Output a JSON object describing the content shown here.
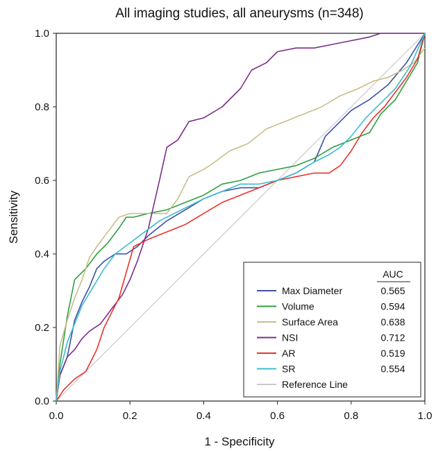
{
  "chart_data": {
    "type": "line",
    "title": "All imaging studies, all aneurysms (n=348)",
    "xlabel": "1 - Specificity",
    "ylabel": "Sensitivity",
    "xlim": [
      0,
      1
    ],
    "ylim": [
      0,
      1
    ],
    "xticks": [
      "0.0",
      "0.2",
      "0.4",
      "0.6",
      "0.8",
      "1.0"
    ],
    "yticks": [
      "0.0",
      "0.2",
      "0.4",
      "0.6",
      "0.8",
      "1.0"
    ],
    "grid": false,
    "legend": {
      "placement": "bottom-right",
      "header": "AUC"
    },
    "series": [
      {
        "name": "Max Diameter",
        "auc": "0.565",
        "color": "#3b4fa8",
        "points": [
          [
            0,
            0
          ],
          [
            0.01,
            0.07
          ],
          [
            0.03,
            0.12
          ],
          [
            0.05,
            0.22
          ],
          [
            0.07,
            0.27
          ],
          [
            0.09,
            0.31
          ],
          [
            0.11,
            0.36
          ],
          [
            0.13,
            0.38
          ],
          [
            0.16,
            0.4
          ],
          [
            0.19,
            0.4
          ],
          [
            0.22,
            0.42
          ],
          [
            0.25,
            0.45
          ],
          [
            0.3,
            0.49
          ],
          [
            0.35,
            0.52
          ],
          [
            0.4,
            0.55
          ],
          [
            0.45,
            0.57
          ],
          [
            0.5,
            0.58
          ],
          [
            0.55,
            0.58
          ],
          [
            0.6,
            0.6
          ],
          [
            0.65,
            0.62
          ],
          [
            0.7,
            0.65
          ],
          [
            0.73,
            0.72
          ],
          [
            0.77,
            0.76
          ],
          [
            0.8,
            0.79
          ],
          [
            0.85,
            0.82
          ],
          [
            0.9,
            0.86
          ],
          [
            0.95,
            0.92
          ],
          [
            1.0,
            1.0
          ]
        ]
      },
      {
        "name": "Volume",
        "auc": "0.594",
        "color": "#2e9e3e",
        "points": [
          [
            0,
            0
          ],
          [
            0.01,
            0.1
          ],
          [
            0.03,
            0.23
          ],
          [
            0.05,
            0.33
          ],
          [
            0.08,
            0.36
          ],
          [
            0.11,
            0.4
          ],
          [
            0.14,
            0.43
          ],
          [
            0.17,
            0.47
          ],
          [
            0.19,
            0.5
          ],
          [
            0.21,
            0.5
          ],
          [
            0.25,
            0.51
          ],
          [
            0.3,
            0.52
          ],
          [
            0.35,
            0.54
          ],
          [
            0.4,
            0.56
          ],
          [
            0.45,
            0.59
          ],
          [
            0.5,
            0.6
          ],
          [
            0.55,
            0.62
          ],
          [
            0.6,
            0.63
          ],
          [
            0.65,
            0.64
          ],
          [
            0.7,
            0.66
          ],
          [
            0.75,
            0.69
          ],
          [
            0.8,
            0.71
          ],
          [
            0.85,
            0.73
          ],
          [
            0.88,
            0.78
          ],
          [
            0.92,
            0.82
          ],
          [
            0.95,
            0.87
          ],
          [
            0.98,
            0.92
          ],
          [
            1.0,
            1.0
          ]
        ]
      },
      {
        "name": "Surface Area",
        "auc": "0.638",
        "color": "#c8bd8a",
        "points": [
          [
            0,
            0
          ],
          [
            0.01,
            0.15
          ],
          [
            0.03,
            0.22
          ],
          [
            0.05,
            0.28
          ],
          [
            0.07,
            0.33
          ],
          [
            0.09,
            0.39
          ],
          [
            0.11,
            0.42
          ],
          [
            0.14,
            0.46
          ],
          [
            0.17,
            0.5
          ],
          [
            0.2,
            0.51
          ],
          [
            0.25,
            0.51
          ],
          [
            0.3,
            0.51
          ],
          [
            0.33,
            0.55
          ],
          [
            0.36,
            0.61
          ],
          [
            0.4,
            0.63
          ],
          [
            0.43,
            0.65
          ],
          [
            0.47,
            0.68
          ],
          [
            0.52,
            0.7
          ],
          [
            0.57,
            0.74
          ],
          [
            0.62,
            0.76
          ],
          [
            0.67,
            0.78
          ],
          [
            0.72,
            0.8
          ],
          [
            0.77,
            0.83
          ],
          [
            0.82,
            0.85
          ],
          [
            0.86,
            0.87
          ],
          [
            0.9,
            0.88
          ],
          [
            0.94,
            0.9
          ],
          [
            0.97,
            0.92
          ],
          [
            1.0,
            0.96
          ]
        ]
      },
      {
        "name": "NSI",
        "auc": "0.712",
        "color": "#7b2d8b",
        "points": [
          [
            0,
            0
          ],
          [
            0.01,
            0.07
          ],
          [
            0.03,
            0.12
          ],
          [
            0.05,
            0.14
          ],
          [
            0.07,
            0.17
          ],
          [
            0.09,
            0.19
          ],
          [
            0.12,
            0.21
          ],
          [
            0.15,
            0.25
          ],
          [
            0.18,
            0.29
          ],
          [
            0.2,
            0.33
          ],
          [
            0.22,
            0.38
          ],
          [
            0.25,
            0.47
          ],
          [
            0.28,
            0.6
          ],
          [
            0.3,
            0.69
          ],
          [
            0.33,
            0.71
          ],
          [
            0.36,
            0.76
          ],
          [
            0.4,
            0.77
          ],
          [
            0.45,
            0.8
          ],
          [
            0.5,
            0.85
          ],
          [
            0.53,
            0.9
          ],
          [
            0.57,
            0.92
          ],
          [
            0.6,
            0.95
          ],
          [
            0.65,
            0.96
          ],
          [
            0.7,
            0.96
          ],
          [
            0.75,
            0.97
          ],
          [
            0.8,
            0.98
          ],
          [
            0.85,
            0.99
          ],
          [
            0.88,
            1.0
          ],
          [
            1.0,
            1.0
          ]
        ]
      },
      {
        "name": "AR",
        "auc": "0.519",
        "color": "#e8332a",
        "points": [
          [
            0,
            0
          ],
          [
            0.02,
            0.03
          ],
          [
            0.05,
            0.06
          ],
          [
            0.08,
            0.08
          ],
          [
            0.11,
            0.14
          ],
          [
            0.13,
            0.2
          ],
          [
            0.15,
            0.24
          ],
          [
            0.17,
            0.28
          ],
          [
            0.19,
            0.35
          ],
          [
            0.21,
            0.42
          ],
          [
            0.25,
            0.44
          ],
          [
            0.3,
            0.46
          ],
          [
            0.35,
            0.48
          ],
          [
            0.4,
            0.51
          ],
          [
            0.45,
            0.54
          ],
          [
            0.5,
            0.56
          ],
          [
            0.55,
            0.58
          ],
          [
            0.6,
            0.6
          ],
          [
            0.65,
            0.61
          ],
          [
            0.7,
            0.62
          ],
          [
            0.74,
            0.62
          ],
          [
            0.77,
            0.64
          ],
          [
            0.8,
            0.68
          ],
          [
            0.83,
            0.73
          ],
          [
            0.86,
            0.77
          ],
          [
            0.89,
            0.8
          ],
          [
            0.92,
            0.84
          ],
          [
            0.95,
            0.88
          ],
          [
            0.98,
            0.93
          ],
          [
            1.0,
            1.0
          ]
        ]
      },
      {
        "name": "SR",
        "auc": "0.554",
        "color": "#3bbcd0",
        "points": [
          [
            0,
            0
          ],
          [
            0.01,
            0.08
          ],
          [
            0.03,
            0.16
          ],
          [
            0.05,
            0.21
          ],
          [
            0.07,
            0.26
          ],
          [
            0.1,
            0.31
          ],
          [
            0.13,
            0.36
          ],
          [
            0.16,
            0.4
          ],
          [
            0.2,
            0.43
          ],
          [
            0.24,
            0.46
          ],
          [
            0.28,
            0.49
          ],
          [
            0.32,
            0.51
          ],
          [
            0.36,
            0.53
          ],
          [
            0.4,
            0.55
          ],
          [
            0.45,
            0.57
          ],
          [
            0.5,
            0.59
          ],
          [
            0.55,
            0.59
          ],
          [
            0.6,
            0.6
          ],
          [
            0.65,
            0.62
          ],
          [
            0.7,
            0.65
          ],
          [
            0.74,
            0.67
          ],
          [
            0.77,
            0.69
          ],
          [
            0.8,
            0.72
          ],
          [
            0.84,
            0.77
          ],
          [
            0.88,
            0.81
          ],
          [
            0.92,
            0.85
          ],
          [
            0.96,
            0.91
          ],
          [
            1.0,
            1.0
          ]
        ]
      },
      {
        "name": "Reference Line",
        "auc": "",
        "color": "#c8c8c8",
        "points": [
          [
            0,
            0
          ],
          [
            1,
            1
          ]
        ]
      }
    ]
  }
}
